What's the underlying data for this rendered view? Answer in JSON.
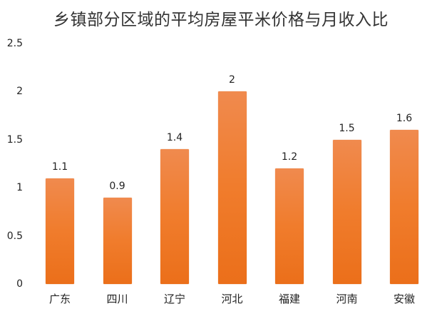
{
  "chart_data": {
    "type": "bar",
    "title": "乡镇部分区域的平均房屋平米价格与月收入比",
    "xlabel": "",
    "ylabel": "",
    "categories": [
      "广东",
      "四川",
      "辽宁",
      "河北",
      "福建",
      "河南",
      "安徽"
    ],
    "values": [
      1.1,
      0.9,
      1.4,
      2,
      1.2,
      1.5,
      1.6
    ],
    "value_labels": [
      "1.1",
      "0.9",
      "1.4",
      "2",
      "1.2",
      "1.5",
      "1.6"
    ],
    "yticks": [
      "0",
      "0.5",
      "1",
      "1.5",
      "2",
      "2.5"
    ],
    "ylim": [
      0,
      2.5
    ],
    "grid": false,
    "legend": null,
    "bar_color": "#f07c2c"
  }
}
